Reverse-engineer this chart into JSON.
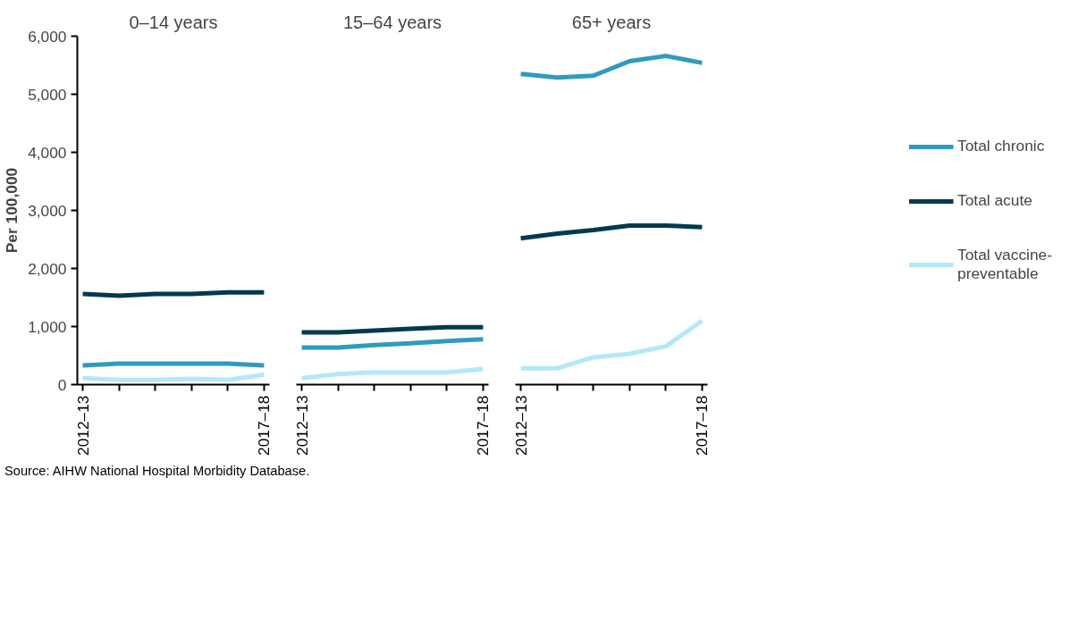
{
  "chart_data": [
    {
      "type": "line",
      "title": "0–14 years",
      "ylabel": "Per 100,000",
      "categories": [
        "2012–13",
        null,
        null,
        null,
        null,
        "2017–18"
      ],
      "ylim": [
        0,
        6000
      ],
      "yticks": [
        0,
        {
          "value": 1000,
          "label": "1,000"
        },
        {
          "value": 2000,
          "label": "2,000"
        },
        {
          "value": 3000,
          "label": "3,000"
        },
        {
          "value": 4000,
          "label": "4,000"
        },
        {
          "value": 5000,
          "label": "5,000"
        },
        {
          "value": 6000,
          "label": "6,000"
        }
      ],
      "grid": false,
      "annotations": [
        "Source: AIHW National Hospital Morbidity Database."
      ],
      "series": [
        {
          "color": "#2e9bbf",
          "values": [
            330,
            360,
            360,
            360,
            360,
            330
          ]
        },
        {
          "color": "#003a4f",
          "values": [
            1560,
            1530,
            1560,
            1560,
            1590,
            1590
          ]
        },
        {
          "color": "#b3e7fa",
          "values": [
            110,
            80,
            80,
            100,
            80,
            170
          ]
        }
      ]
    },
    {
      "type": "line",
      "title": "15–64 years",
      "categories": [
        "2012–13",
        null,
        null,
        null,
        null,
        "2017–18"
      ],
      "ylim": [
        0,
        6000
      ],
      "tick_labels": "x",
      "grid": false,
      "series": [
        {
          "color": "#2e9bbf",
          "values": [
            640,
            640,
            680,
            710,
            750,
            780
          ]
        },
        {
          "color": "#003a4f",
          "values": [
            900,
            900,
            930,
            960,
            990,
            990
          ]
        },
        {
          "color": "#b3e7fa",
          "values": [
            110,
            180,
            210,
            210,
            210,
            270
          ]
        }
      ]
    },
    {
      "type": "line",
      "title": "65+ years",
      "categories": [
        "2012–13",
        null,
        null,
        null,
        null,
        "2017–18"
      ],
      "ylim": [
        0,
        6000
      ],
      "tick_labels": "x",
      "grid": false,
      "legend": "right",
      "series": [
        {
          "name": "Total chronic",
          "color": "#2e9bbf",
          "values": [
            5350,
            5290,
            5320,
            5570,
            5660,
            5540
          ]
        },
        {
          "name": "Total acute",
          "color": "#003a4f",
          "values": [
            2520,
            2600,
            2660,
            2740,
            2740,
            2710
          ]
        },
        {
          "name": "Total vaccine-preventable",
          "color": "#b3e7fa",
          "values": [
            280,
            280,
            470,
            530,
            660,
            1100
          ]
        }
      ]
    }
  ]
}
